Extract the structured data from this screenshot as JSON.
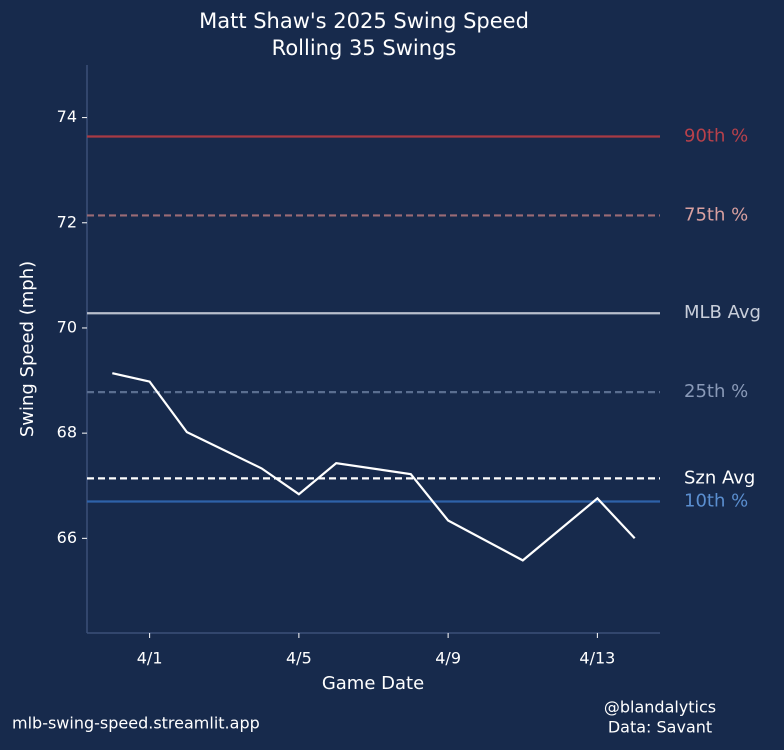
{
  "chart_data": {
    "type": "line",
    "title": "Matt Shaw's 2025 Swing Speed",
    "subtitle": "Rolling 35 Swings",
    "x_label": "Game Date",
    "y_label": "Swing Speed (mph)",
    "x": [
      "3/31",
      "4/1",
      "4/2",
      "4/4",
      "4/5",
      "4/6",
      "4/8",
      "4/9",
      "4/11",
      "4/13",
      "4/14"
    ],
    "values": [
      69.14,
      68.98,
      68.02,
      67.33,
      66.84,
      67.43,
      67.22,
      66.34,
      65.58,
      66.76,
      66.0
    ],
    "color": "#ffffff",
    "xlim": [
      "3/30",
      "4/15"
    ],
    "xticks": [
      "4/1",
      "4/5",
      "4/9",
      "4/13"
    ],
    "ylim": [
      64.2,
      75
    ],
    "yticks": [
      66,
      68,
      70,
      72,
      74
    ],
    "reference_lines": [
      {
        "name": "90th %",
        "value": 73.64,
        "color": "#a83a44",
        "label_color": "#b8414b",
        "dashed": false
      },
      {
        "name": "75th %",
        "value": 72.14,
        "color": "#9a6b75",
        "label_color": "#d9a0a0",
        "dashed": true
      },
      {
        "name": "MLB Avg",
        "value": 70.28,
        "color": "#b8bfcc",
        "label_color": "#c8ceda",
        "dashed": false
      },
      {
        "name": "25th %",
        "value": 68.78,
        "color": "#5a6e90",
        "label_color": "#8a9ab8",
        "dashed": true
      },
      {
        "name": "Szn Avg",
        "value": 67.14,
        "color": "#ffffff",
        "label_color": "#ffffff",
        "dashed": true
      },
      {
        "name": "10th %",
        "value": 66.7,
        "color": "#2e62a8",
        "label_color": "#5b8fd0",
        "dashed": false
      }
    ]
  },
  "footer": {
    "site": "mlb-swing-speed.streamlit.app",
    "handle": "@blandalytics",
    "source": "Data: Savant"
  }
}
